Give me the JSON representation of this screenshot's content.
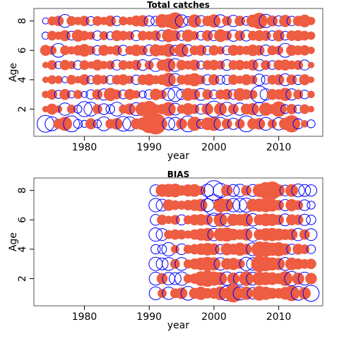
{
  "chart_data": [
    {
      "type": "scatter",
      "subtype": "bubble",
      "title": "Total catches",
      "xlabel": "year",
      "ylabel": "Age",
      "xlim": [
        1972.2,
        2016.8
      ],
      "ylim": [
        0.15,
        8.85
      ],
      "xticks": [
        1980,
        1990,
        2000,
        2010
      ],
      "yticks": [
        2,
        4,
        6,
        8
      ],
      "grid": false,
      "legend": "none",
      "colors": {
        "positive": "#EE5C42",
        "negative": "#0000FF"
      },
      "x": [
        1974,
        1975,
        1976,
        1977,
        1978,
        1979,
        1980,
        1981,
        1982,
        1983,
        1984,
        1985,
        1986,
        1987,
        1988,
        1989,
        1990,
        1991,
        1992,
        1993,
        1994,
        1995,
        1996,
        1997,
        1998,
        1999,
        2000,
        2001,
        2002,
        2003,
        2004,
        2005,
        2006,
        2007,
        2008,
        2009,
        2010,
        2011,
        2012,
        2013,
        2014,
        2015
      ],
      "y": [
        1,
        2,
        3,
        4,
        5,
        6,
        7,
        8
      ],
      "max_abs": 3.5,
      "values": [
        [
          -2.2,
          -1.5,
          0.8,
          1.5,
          -2.0,
          -0.6,
          -0.4,
          0.9,
          -0.5,
          -1.5,
          0.7,
          1.0,
          -1.7,
          -1.5,
          0.9,
          1.2,
          2.6,
          3.4,
          0.8,
          -1.2,
          -1.3,
          0.9,
          -2.0,
          1.5,
          -0.6,
          1.2,
          1.5,
          -1.3,
          0.8,
          -1.0,
          0.7,
          -2.0,
          0.9,
          1.0,
          -1.3,
          0.6,
          -1.2,
          1.1,
          2.2,
          -0.8,
          0.4,
          -0.5
        ],
        [
          0.3,
          0.9,
          0.4,
          -1.2,
          0.6,
          -0.5,
          -1.8,
          -1.5,
          0.7,
          -0.9,
          -0.6,
          -1.5,
          0.6,
          1.0,
          -1.3,
          1.5,
          2.0,
          0.7,
          0.8,
          1.5,
          -1.1,
          0.6,
          1.1,
          0.7,
          -0.8,
          1.0,
          -2.0,
          1.2,
          -1.5,
          0.8,
          -1.2,
          0.9,
          1.1,
          -1.4,
          1.3,
          0.7,
          1.8,
          -0.6,
          0.8,
          -0.5,
          0.7,
          0.3
        ],
        [
          0.4,
          0.8,
          -0.5,
          0.9,
          -0.4,
          0.6,
          -0.3,
          -0.7,
          0.8,
          -1.0,
          1.3,
          0.7,
          -0.6,
          0.9,
          0.5,
          -0.4,
          -0.7,
          1.0,
          0.6,
          -1.2,
          -1.6,
          -0.8,
          1.2,
          0.9,
          -1.1,
          0.8,
          -0.6,
          0.7,
          0.9,
          -0.7,
          1.2,
          0.8,
          0.6,
          -2.2,
          -1.0,
          0.9,
          0.8,
          1.3,
          -1.0,
          0.7,
          -0.6,
          0.4
        ],
        [
          0.3,
          0.6,
          0.5,
          -0.3,
          0.7,
          0.4,
          0.9,
          -0.5,
          0.8,
          0.6,
          -0.6,
          0.7,
          0.9,
          0.5,
          -0.7,
          0.8,
          1.0,
          0.6,
          0.8,
          1.5,
          -1.2,
          0.7,
          0.9,
          1.3,
          0.6,
          -0.8,
          0.9,
          -0.6,
          -0.7,
          0.8,
          0.5,
          0.9,
          0.6,
          -1.0,
          -0.6,
          0.7,
          0.9,
          -1.1,
          0.8,
          -0.7,
          0.9,
          0.3
        ],
        [
          0.3,
          0.7,
          -0.4,
          0.8,
          0.5,
          -0.6,
          0.7,
          0.4,
          0.9,
          0.5,
          0.6,
          -0.8,
          0.7,
          0.5,
          0.8,
          -0.9,
          0.6,
          -1.3,
          0.9,
          1.4,
          -1.3,
          0.8,
          0.6,
          0.9,
          -0.5,
          0.7,
          0.8,
          0.6,
          -0.9,
          0.7,
          0.8,
          0.5,
          0.9,
          -1.0,
          0.7,
          -0.6,
          0.8,
          0.9,
          0.6,
          0.7,
          -0.8,
          0.3
        ],
        [
          0.9,
          0.6,
          -1.5,
          0.7,
          0.5,
          0.8,
          1.2,
          0.6,
          -0.7,
          0.9,
          0.5,
          0.8,
          -0.8,
          0.6,
          1.0,
          0.7,
          -0.9,
          1.1,
          0.8,
          1.3,
          -0.8,
          1.4,
          -1.0,
          0.7,
          0.9,
          -0.6,
          0.8,
          0.5,
          -0.6,
          0.9,
          0.7,
          0.6,
          1.0,
          0.8,
          -0.9,
          0.7,
          0.6,
          -1.5,
          0.9,
          0.7,
          0.8,
          0.4
        ],
        [
          -0.4,
          0.7,
          0.5,
          0.9,
          -0.6,
          1.1,
          0.7,
          0.5,
          -0.7,
          0.6,
          -0.5,
          0.9,
          0.7,
          0.6,
          -0.8,
          0.7,
          0.6,
          0.8,
          -0.9,
          1.3,
          0.9,
          -0.7,
          1.1,
          0.6,
          -0.6,
          0.9,
          -0.8,
          1.2,
          0.7,
          -1.0,
          0.8,
          -0.9,
          0.7,
          0.9,
          0.8,
          -0.7,
          1.0,
          -0.6,
          0.8,
          0.9,
          0.7,
          0.5
        ],
        [
          -0.3,
          0.6,
          0.8,
          -1.3,
          0.7,
          0.5,
          0.8,
          -0.6,
          0.7,
          0.5,
          0.9,
          -0.7,
          0.6,
          0.5,
          0.9,
          1.0,
          -0.8,
          -0.7,
          1.4,
          1.3,
          2.2,
          -1.2,
          -0.6,
          1.3,
          -0.9,
          0.8,
          1.3,
          -1.2,
          0.7,
          -1.0,
          0.8,
          -0.6,
          1.2,
          2.0,
          -1.4,
          0.9,
          -0.8,
          1.1,
          -0.7,
          0.8,
          1.2,
          0.5
        ]
      ]
    },
    {
      "type": "scatter",
      "subtype": "bubble",
      "title": "BIAS",
      "xlabel": "year",
      "ylabel": "Age",
      "xlim": [
        1972.2,
        2016.8
      ],
      "ylim": [
        0.15,
        8.85
      ],
      "xticks": [
        1980,
        1990,
        2000,
        2010
      ],
      "yticks": [
        2,
        4,
        6,
        8
      ],
      "grid": false,
      "legend": "none",
      "colors": {
        "positive": "#EE5C42",
        "negative": "#0000FF"
      },
      "x": [
        1991,
        1992,
        1993,
        1994,
        1995,
        1996,
        1997,
        1998,
        1999,
        2000,
        2001,
        2002,
        2003,
        2004,
        2005,
        2006,
        2007,
        2008,
        2009,
        2010,
        2011,
        2012,
        2013,
        2014,
        2015
      ],
      "y": [
        1,
        2,
        3,
        4,
        5,
        6,
        7,
        8
      ],
      "max_abs": 3.5,
      "values": [
        [
          -1.3,
          0.6,
          -1.2,
          0.7,
          1.0,
          -1.5,
          0.9,
          1.3,
          0.8,
          0.9,
          1.4,
          -1.7,
          2.5,
          -1.4,
          1.3,
          -1.0,
          1.6,
          1.3,
          0.9,
          0.8,
          1.2,
          1.8,
          -1.5,
          1.1,
          -2.0
        ],
        [
          -1.3,
          0.9,
          -1.2,
          -1.1,
          -1.4,
          0.6,
          0.8,
          1.6,
          2.0,
          1.5,
          1.3,
          -1.4,
          1.1,
          -1.3,
          1.6,
          -1.3,
          1.4,
          1.3,
          1.2,
          0.9,
          1.6,
          -1.6,
          1.1,
          -1.3,
          1.0
        ],
        [
          -1.4,
          -1.1,
          -1.3,
          0.7,
          -1.3,
          0.6,
          0.9,
          1.2,
          1.5,
          1.3,
          -1.2,
          1.0,
          1.1,
          0.7,
          -1.4,
          -1.2,
          2.0,
          1.6,
          1.3,
          1.1,
          -1.3,
          1.2,
          0.9,
          0.7,
          0.8
        ],
        [
          -0.7,
          -0.6,
          -1.4,
          0.5,
          -0.9,
          0.6,
          0.8,
          1.0,
          1.2,
          1.0,
          -0.7,
          1.1,
          0.9,
          1.3,
          0.9,
          -1.3,
          1.8,
          1.7,
          1.3,
          1.5,
          1.0,
          -0.8,
          0.9,
          0.7,
          -0.6
        ],
        [
          -1.4,
          -1.1,
          0.6,
          0.8,
          0.7,
          0.5,
          0.8,
          1.1,
          1.3,
          -1.2,
          1.3,
          1.5,
          1.0,
          0.8,
          1.1,
          -1.4,
          0.9,
          1.2,
          1.3,
          1.1,
          0.9,
          1.0,
          -1.2,
          0.8,
          -1.1
        ],
        [
          -0.9,
          0.8,
          0.5,
          0.7,
          -0.8,
          0.6,
          0.9,
          1.0,
          0.8,
          -1.4,
          1.4,
          -1.3,
          1.1,
          1.0,
          1.3,
          -1.2,
          0.9,
          1.2,
          1.1,
          0.8,
          -1.1,
          0.9,
          0.8,
          -1.0,
          -0.7
        ],
        [
          -1.4,
          -1.1,
          1.0,
          0.7,
          0.6,
          0.8,
          1.0,
          1.2,
          -1.3,
          -3.3,
          1.5,
          1.2,
          -1.4,
          -1.5,
          -1.6,
          1.2,
          1.3,
          1.5,
          1.2,
          0.8,
          -1.0,
          1.1,
          0.7,
          -0.9,
          -0.5
        ],
        [
          -1.0,
          1.2,
          1.3,
          1.4,
          0.8,
          1.1,
          1.2,
          0.6,
          -1.2,
          -3.0,
          -1.6,
          1.0,
          -1.1,
          -1.2,
          0.8,
          -1.1,
          1.3,
          2.1,
          2.4,
          1.1,
          -0.9,
          1.2,
          -1.3,
          -1.1,
          -1.0
        ]
      ]
    }
  ]
}
